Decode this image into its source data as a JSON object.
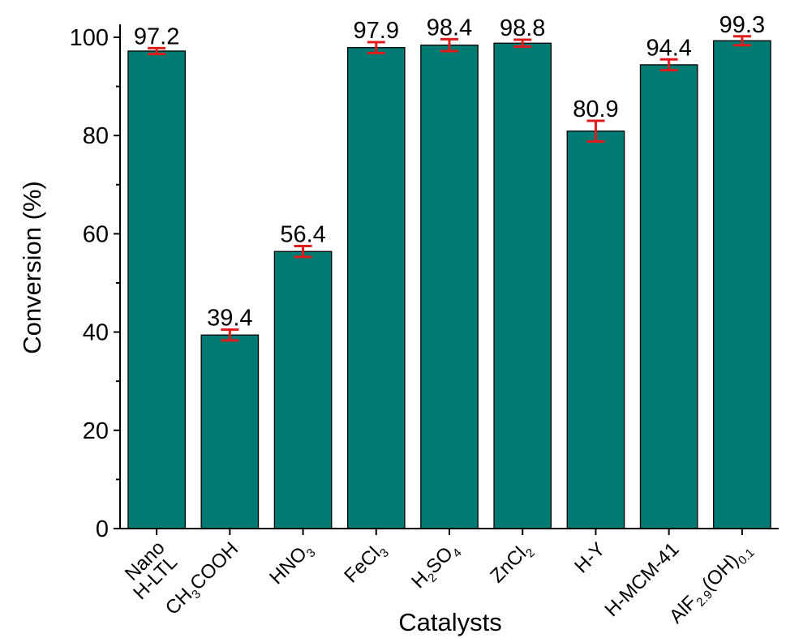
{
  "chart_data": {
    "type": "bar",
    "xlabel": "Catalysts",
    "ylabel": "Conversion (%)",
    "ylim": [
      0,
      100
    ],
    "yticks": [
      0,
      20,
      40,
      60,
      80,
      100
    ],
    "grid": false,
    "bar_color": "#007b73",
    "error_bar_color": "#e01b1b",
    "categories": [
      {
        "line1": "Nano",
        "line2": "H-LTL"
      },
      {
        "parts": [
          {
            "t": "CH"
          },
          {
            "sub": "3"
          },
          {
            "t": "COOH"
          }
        ]
      },
      {
        "parts": [
          {
            "t": "HNO"
          },
          {
            "sub": "3"
          }
        ]
      },
      {
        "parts": [
          {
            "t": "FeCl"
          },
          {
            "sub": "3"
          }
        ]
      },
      {
        "parts": [
          {
            "t": "H"
          },
          {
            "sub": "2"
          },
          {
            "t": "SO"
          },
          {
            "sub": "4"
          }
        ]
      },
      {
        "parts": [
          {
            "t": "ZnCl"
          },
          {
            "sub": "2"
          }
        ]
      },
      {
        "parts": [
          {
            "t": "H-Y"
          }
        ]
      },
      {
        "parts": [
          {
            "t": "H-MCM-41"
          }
        ]
      },
      {
        "parts": [
          {
            "t": "AlF"
          },
          {
            "sub": "2.9"
          },
          {
            "t": "(OH)"
          },
          {
            "sub": "0.1"
          }
        ]
      }
    ],
    "values": [
      97.2,
      39.4,
      56.4,
      97.9,
      98.4,
      98.8,
      80.9,
      94.4,
      99.3
    ],
    "data_labels": [
      "97.2",
      "39.4",
      "56.4",
      "97.9",
      "98.4",
      "98.8",
      "80.9",
      "94.4",
      "99.3"
    ],
    "errors": [
      0.6,
      1.1,
      1.1,
      1.1,
      1.2,
      0.7,
      2.1,
      1.1,
      0.9
    ]
  }
}
